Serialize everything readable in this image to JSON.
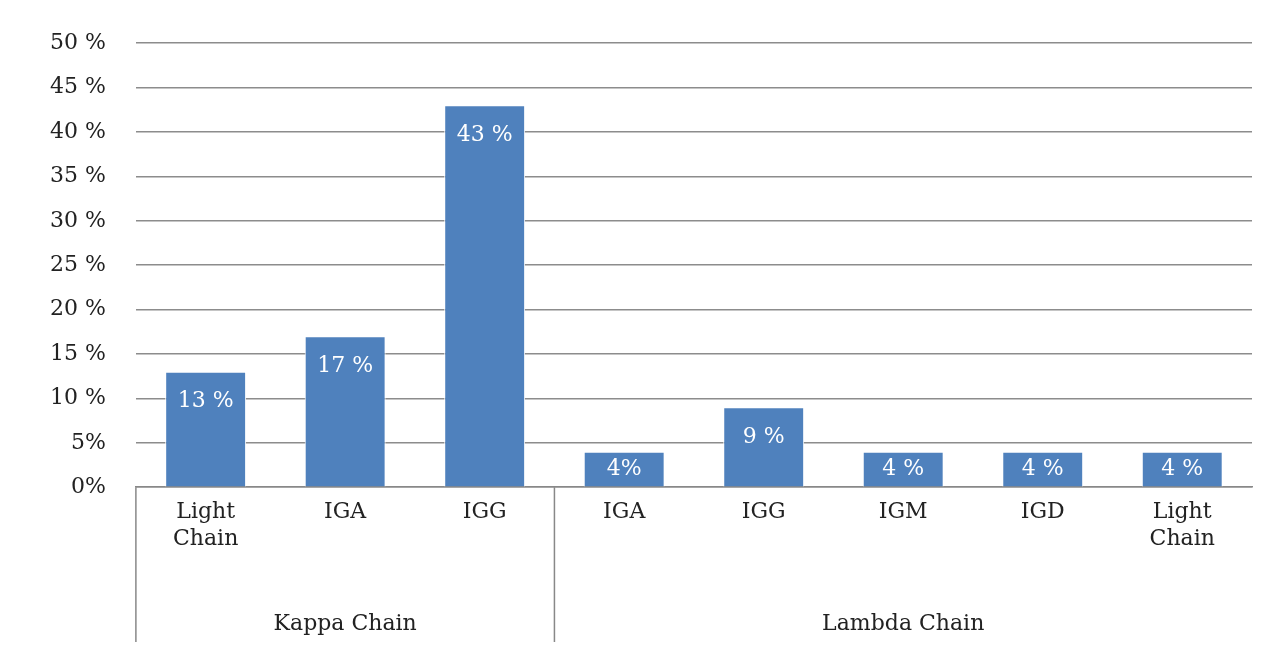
{
  "chart_data": {
    "type": "bar",
    "categories": [
      "Light Chain",
      "IGA",
      "IGG",
      "IGA",
      "IGG",
      "IGM",
      "IGD",
      "Light Chain"
    ],
    "values": [
      13,
      17,
      43,
      4,
      9,
      4,
      4,
      4
    ],
    "value_labels": [
      "13 %",
      "17 %",
      "43 %",
      "4%",
      "9 %",
      "4 %",
      "4 %",
      "4 %"
    ],
    "color": "#4f81bd",
    "ylim": [
      0,
      50
    ],
    "yticks": [
      {
        "value": 0,
        "label": "0%"
      },
      {
        "value": 5,
        "label": "5%"
      },
      {
        "value": 10,
        "label": "10 %"
      },
      {
        "value": 15,
        "label": "15 %"
      },
      {
        "value": 20,
        "label": "20 %"
      },
      {
        "value": 25,
        "label": "25 %"
      },
      {
        "value": 30,
        "label": "30 %"
      },
      {
        "value": 35,
        "label": "35 %"
      },
      {
        "value": 40,
        "label": "40 %"
      },
      {
        "value": 45,
        "label": "45 %"
      },
      {
        "value": 50,
        "label": "50 %"
      }
    ],
    "grid": "y",
    "annotations": [
      "Kappa Chain",
      "Lambda Chain"
    ]
  }
}
